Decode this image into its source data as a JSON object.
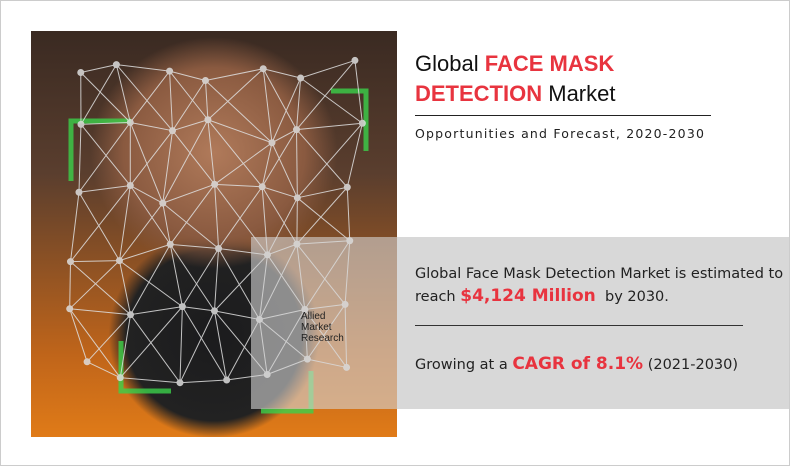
{
  "title": {
    "prefix": "Global",
    "highlight_line1": "FACE MASK",
    "highlight_line2": "DETECTION",
    "suffix": "Market"
  },
  "subtitle": "Opportunities and Forecast, 2020-2030",
  "stat1": {
    "text_before": "Global Face Mask Detection Market is estimated to reach",
    "value": "$4,124 Million",
    "text_after": "by 2030."
  },
  "stat2": {
    "text_before": "Growing at a",
    "value": "CAGR of 8.1%",
    "text_after": "(2021-2030)"
  },
  "logo": {
    "line1": "Allied",
    "line2": "Market",
    "line3": "Research"
  },
  "colors": {
    "accent": "#e8343f",
    "panel": "#d8d8d8",
    "mesh": "#dcdcdc",
    "frame": "#3bd14a"
  }
}
